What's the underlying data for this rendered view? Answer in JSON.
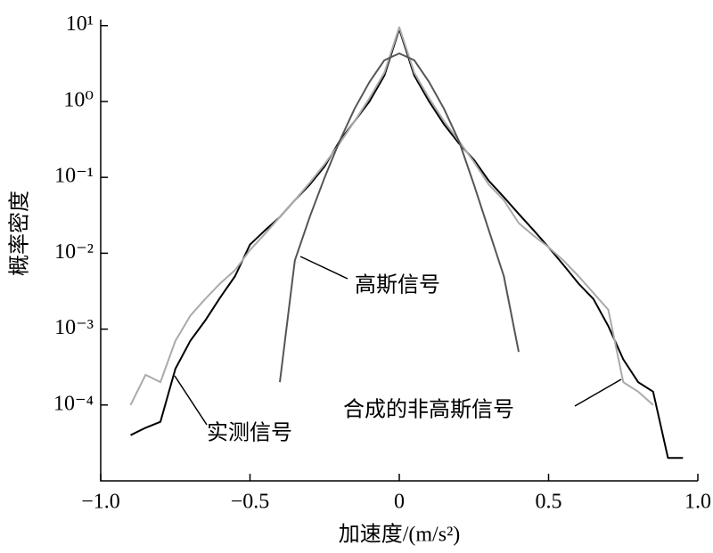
{
  "chart_data": {
    "type": "line",
    "x_label": "加速度/(m/s²)",
    "y_label": "概率密度",
    "log_y": true,
    "xlim": [
      -1,
      1
    ],
    "ylim": [
      1e-05,
      12
    ],
    "xticks": [
      {
        "value": -1,
        "label": "−1.0"
      },
      {
        "value": -0.5,
        "label": "−0.5"
      },
      0,
      {
        "value": 0.5,
        "label": "0.5"
      },
      {
        "value": 1,
        "label": "1.0"
      }
    ],
    "yticks": [
      {
        "value": 0.0001,
        "label": "10⁻⁴"
      },
      {
        "value": 0.001,
        "label": "10⁻³"
      },
      {
        "value": 0.01,
        "label": "10⁻²"
      },
      {
        "value": 0.1,
        "label": "10⁻¹"
      },
      {
        "value": 1,
        "label": "10⁰"
      },
      {
        "value": 10,
        "label": "10¹"
      }
    ],
    "x": [
      -0.95,
      -0.9,
      -0.85,
      -0.8,
      -0.75,
      -0.7,
      -0.65,
      -0.6,
      -0.55,
      -0.5,
      -0.45,
      -0.4,
      -0.35,
      -0.3,
      -0.25,
      -0.2,
      -0.15,
      -0.1,
      -0.05,
      0,
      0.05,
      0.1,
      0.15,
      0.2,
      0.25,
      0.3,
      0.35,
      0.4,
      0.45,
      0.5,
      0.55,
      0.6,
      0.65,
      0.7,
      0.75,
      0.8,
      0.85,
      0.9,
      0.95
    ],
    "series": [
      {
        "name": "实测信号",
        "color": "#000000",
        "values": [
          null,
          4e-05,
          5e-05,
          6e-05,
          0.0003,
          0.0007,
          0.0013,
          0.0026,
          0.005,
          0.013,
          0.02,
          0.03,
          0.05,
          0.08,
          0.14,
          0.3,
          0.55,
          1.0,
          2.2,
          9,
          2.2,
          1.0,
          0.5,
          0.28,
          0.17,
          0.09,
          0.055,
          0.033,
          0.02,
          0.012,
          0.007,
          0.004,
          0.0025,
          0.0011,
          0.0004,
          0.0002,
          0.00015,
          2e-05,
          2e-05
        ]
      },
      {
        "name": "合成的非高斯信号",
        "color": "#aaaaaa",
        "values": [
          null,
          0.0001,
          0.00025,
          0.0002,
          0.0007,
          0.0015,
          0.0025,
          0.004,
          0.006,
          0.011,
          0.018,
          0.03,
          0.05,
          0.085,
          0.15,
          0.28,
          0.55,
          1.1,
          2.4,
          9.5,
          2.4,
          1.1,
          0.55,
          0.3,
          0.16,
          0.08,
          0.05,
          0.025,
          0.017,
          0.012,
          0.008,
          0.005,
          0.003,
          0.0018,
          0.0002,
          0.00015,
          0.0001,
          null,
          null
        ]
      },
      {
        "name": "高斯信号",
        "color": "#555555",
        "values": [
          null,
          null,
          null,
          null,
          null,
          null,
          null,
          null,
          null,
          null,
          null,
          0.0002,
          0.008,
          0.03,
          0.1,
          0.3,
          0.8,
          1.8,
          3.5,
          4.3,
          3.5,
          1.8,
          0.8,
          0.3,
          0.08,
          0.02,
          0.005,
          0.0005,
          null,
          null,
          null,
          null,
          null,
          null,
          null,
          null,
          null,
          null,
          null
        ]
      }
    ]
  }
}
